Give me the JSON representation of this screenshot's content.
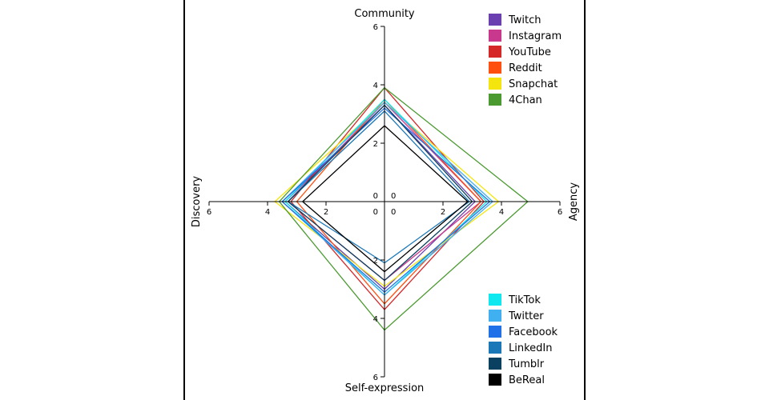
{
  "chart_data": {
    "type": "radar",
    "axes": [
      "Community",
      "Agency",
      "Self-expression",
      "Discovery"
    ],
    "range": [
      0,
      6
    ],
    "ticks": [
      0,
      2,
      4,
      6
    ],
    "series": [
      {
        "name": "Twitch",
        "color": "#6a3fb0",
        "values": [
          3.3,
          3.1,
          3.0,
          3.4
        ]
      },
      {
        "name": "Instagram",
        "color": "#c8388c",
        "values": [
          3.4,
          3.3,
          2.7,
          3.3
        ]
      },
      {
        "name": "YouTube",
        "color": "#d62728",
        "values": [
          3.9,
          3.4,
          3.7,
          3.2
        ]
      },
      {
        "name": "Reddit",
        "color": "#ff5010",
        "values": [
          3.5,
          3.3,
          3.5,
          3.0
        ]
      },
      {
        "name": "Snapchat",
        "color": "#f5e50f",
        "values": [
          3.4,
          3.9,
          2.9,
          3.75
        ]
      },
      {
        "name": "4Chan",
        "color": "#4a9a30",
        "values": [
          3.9,
          4.9,
          4.4,
          3.6
        ]
      },
      {
        "name": "TikTok",
        "color": "#10e8f0",
        "values": [
          3.5,
          3.5,
          3.2,
          3.4
        ]
      },
      {
        "name": "Twitter",
        "color": "#40b0f0",
        "values": [
          3.4,
          3.7,
          3.2,
          3.5
        ]
      },
      {
        "name": "Facebook",
        "color": "#2070e8",
        "values": [
          3.2,
          3.6,
          3.1,
          3.5
        ]
      },
      {
        "name": "LinkedIn",
        "color": "#1a78b8",
        "values": [
          3.1,
          2.9,
          2.1,
          3.3
        ]
      },
      {
        "name": "Tumblr",
        "color": "#0a4060",
        "values": [
          3.3,
          3.0,
          2.7,
          3.3
        ]
      },
      {
        "name": "BeReal",
        "color": "#000000",
        "values": [
          2.6,
          2.85,
          2.4,
          2.8
        ]
      }
    ]
  }
}
